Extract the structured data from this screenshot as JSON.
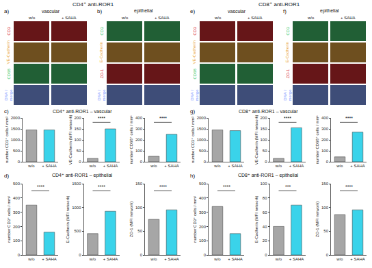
{
  "figures": [
    {
      "header": "CD4⁺ anti-ROR1",
      "image_panels": [
        {
          "letter": "a)",
          "title": "vascular",
          "columns": [
            "w/o",
            "+ SAHA"
          ],
          "rows": [
            {
              "label": "CD3",
              "color": "#d8262b"
            },
            {
              "label": "VE-Cadherin",
              "color": "#e8a33a"
            },
            {
              "label": "CD68",
              "color": "#3fc86a"
            },
            {
              "label": "DNA / merge",
              "color": "#7fa0ff"
            }
          ]
        },
        {
          "letter": "b)",
          "title": "epithelial",
          "columns": [
            "w/o",
            "+ SAHA"
          ],
          "rows": [
            {
              "label": "CD3",
              "color": "#3fc86a"
            },
            {
              "label": "E-Cadherin",
              "color": "#e8a33a"
            },
            {
              "label": "ZO-1",
              "color": "#d8262b"
            },
            {
              "label": "DNA / merge",
              "color": "#7fa0ff"
            }
          ]
        }
      ],
      "chart_groups": [
        {
          "letter": "c)",
          "title": "CD4⁺ anti-ROR1 – vascular"
        },
        {
          "letter": "d)",
          "title": "CD4⁺ anti-ROR1 – epithelial"
        }
      ]
    },
    {
      "header": "CD8⁺ anti-ROR1",
      "image_panels": [
        {
          "letter": "e)",
          "title": "vascular",
          "columns": [
            "w/o",
            "+ SAHA"
          ],
          "rows": [
            {
              "label": "CD3",
              "color": "#d8262b"
            },
            {
              "label": "VE-Cadherin",
              "color": "#e8a33a"
            },
            {
              "label": "CD68",
              "color": "#3fc86a"
            },
            {
              "label": "DNA / merge",
              "color": "#7fa0ff"
            }
          ]
        },
        {
          "letter": "f)",
          "title": "epithelial",
          "columns": [
            "w/o",
            "+ SAHA"
          ],
          "rows": [
            {
              "label": "CD3",
              "color": "#3fc86a"
            },
            {
              "label": "E-Cadherin",
              "color": "#e8a33a"
            },
            {
              "label": "ZO-1",
              "color": "#d8262b"
            },
            {
              "label": "DNA / merge",
              "color": "#7fa0ff"
            }
          ]
        }
      ],
      "chart_groups": [
        {
          "letter": "g)",
          "title": "CD8⁺ anti-ROR1 – vascular"
        },
        {
          "letter": "h)",
          "title": "CD8⁺ anti-ROR1 – epithelial"
        }
      ]
    }
  ],
  "chart_data": [
    {
      "type": "bar",
      "y_label": "number CD3⁺ cells / mm²",
      "categories": [
        "w/o",
        "+ SAHA"
      ],
      "values": [
        1450,
        1450
      ],
      "colors": [
        "#a6a6a6",
        "#3ad3ea"
      ],
      "ylim": [
        0,
        2000
      ],
      "yticks": [
        0,
        500,
        1000,
        1500,
        2000
      ]
    },
    {
      "type": "bar",
      "y_label": "VE-Cadherin (MFI network)",
      "categories": [
        "w/o",
        "+ SAHA"
      ],
      "values": [
        15,
        150
      ],
      "colors": [
        "#a6a6a6",
        "#3ad3ea"
      ],
      "ylim": [
        0,
        200
      ],
      "yticks": [
        0,
        50,
        100,
        150,
        200
      ],
      "annotations": [
        {
          "text": "****"
        }
      ]
    },
    {
      "type": "bar",
      "y_label": "number CD68⁺ cells / mm²",
      "categories": [
        "w/o",
        "+ SAHA"
      ],
      "values": [
        50,
        250
      ],
      "colors": [
        "#a6a6a6",
        "#3ad3ea"
      ],
      "ylim": [
        0,
        400
      ],
      "yticks": [
        0,
        100,
        200,
        300,
        400
      ],
      "annotations": [
        {
          "text": "****"
        }
      ]
    },
    {
      "type": "bar",
      "y_label": "number CD3⁺ cells / mm²",
      "categories": [
        "w/o",
        "+ SAHA"
      ],
      "values": [
        350,
        160
      ],
      "colors": [
        "#a6a6a6",
        "#3ad3ea"
      ],
      "ylim": [
        0,
        500
      ],
      "yticks": [
        0,
        100,
        200,
        300,
        400,
        500
      ],
      "annotations": [
        {
          "text": "****"
        }
      ]
    },
    {
      "type": "bar",
      "y_label": "E-Cadherin (MFI network)",
      "categories": [
        "w/o",
        "+ SAHA"
      ],
      "values": [
        450,
        920
      ],
      "colors": [
        "#a6a6a6",
        "#3ad3ea"
      ],
      "ylim": [
        0,
        1500
      ],
      "yticks": [
        0,
        500,
        1000,
        1500
      ],
      "annotations": [
        {
          "text": "****"
        }
      ]
    },
    {
      "type": "bar",
      "y_label": "ZO-1 (MFI network)",
      "categories": [
        "w/o",
        "+ SAHA"
      ],
      "values": [
        75,
        95
      ],
      "colors": [
        "#a6a6a6",
        "#3ad3ea"
      ],
      "ylim": [
        0,
        150
      ],
      "yticks": [
        0,
        50,
        100,
        150
      ],
      "annotations": [
        {
          "text": "****"
        }
      ]
    },
    {
      "type": "bar",
      "y_label": "number CD3⁺ cells / mm²",
      "categories": [
        "w/o",
        "+ SAHA"
      ],
      "values": [
        1450,
        1420
      ],
      "colors": [
        "#a6a6a6",
        "#3ad3ea"
      ],
      "ylim": [
        0,
        2000
      ],
      "yticks": [
        0,
        500,
        1000,
        1500,
        2000
      ]
    },
    {
      "type": "bar",
      "y_label": "VE-Cadherin (MFI network)",
      "categories": [
        "w/o",
        "+ SAHA"
      ],
      "values": [
        15,
        155
      ],
      "colors": [
        "#a6a6a6",
        "#3ad3ea"
      ],
      "ylim": [
        0,
        200
      ],
      "yticks": [
        0,
        50,
        100,
        150,
        200
      ],
      "annotations": [
        {
          "text": "****"
        }
      ]
    },
    {
      "type": "bar",
      "y_label": "number CD68⁺ cells / mm²",
      "categories": [
        "w/o",
        "+ SAHA"
      ],
      "values": [
        45,
        270
      ],
      "colors": [
        "#a6a6a6",
        "#3ad3ea"
      ],
      "ylim": [
        0,
        400
      ],
      "yticks": [
        0,
        100,
        200,
        300,
        400
      ],
      "annotations": [
        {
          "text": "****"
        }
      ]
    },
    {
      "type": "bar",
      "y_label": "number CD3⁺ cells / mm²",
      "categories": [
        "w/o",
        "+ SAHA"
      ],
      "values": [
        340,
        150
      ],
      "colors": [
        "#a6a6a6",
        "#3ad3ea"
      ],
      "ylim": [
        0,
        500
      ],
      "yticks": [
        0,
        100,
        200,
        300,
        400,
        500
      ],
      "annotations": [
        {
          "text": "****"
        }
      ]
    },
    {
      "type": "bar",
      "y_label": "E-Cadherin (MFI network)",
      "categories": [
        "w/o",
        "+ SAHA"
      ],
      "values": [
        40,
        70
      ],
      "colors": [
        "#a6a6a6",
        "#3ad3ea"
      ],
      "ylim": [
        0,
        100
      ],
      "yticks": [
        0,
        20,
        40,
        60,
        80,
        100
      ],
      "annotations": [
        {
          "text": "***"
        }
      ]
    },
    {
      "type": "bar",
      "y_label": "ZO-1 (MFI network)",
      "categories": [
        "w/o",
        "+ SAHA"
      ],
      "values": [
        85,
        95
      ],
      "colors": [
        "#a6a6a6",
        "#3ad3ea"
      ],
      "ylim": [
        0,
        150
      ],
      "yticks": [
        0,
        50,
        100,
        150
      ],
      "annotations": [
        {
          "text": "****"
        }
      ]
    }
  ]
}
